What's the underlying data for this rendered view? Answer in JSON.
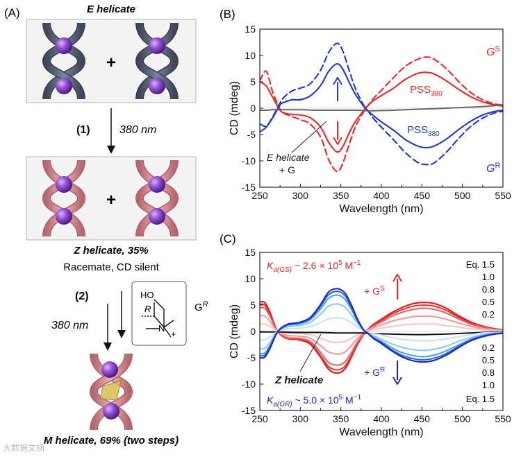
{
  "panel_a": {
    "label": "(A)",
    "e_title": "E helicate",
    "plus1": "+",
    "plus2": "+",
    "step1_num": "(1)",
    "step1_nm": "380 nm",
    "z_title": "Z helicate, 35%",
    "racemate": "Racemate, CD silent",
    "step2_num": "(2)",
    "step2_nm": "380 nm",
    "gr_label": "G",
    "gr_sup": "R",
    "mol_ho": "HO",
    "mol_r": "R",
    "mol_n": "N",
    "mol_plus": "+",
    "m_title": "M helicate, 69% (two steps)",
    "watermark": "大数据文摘",
    "colors": {
      "e_ribbon": "#5b6478",
      "z_ribbon": "#e49aa0",
      "sphere": "#8a4fd0"
    }
  },
  "panel_b": {
    "label": "(B)",
    "anno": {
      "gs": "G",
      "gs_sup": "S",
      "gr": "G",
      "gr_sup": "R",
      "pss_red": "PSS",
      "pss_red_sub": "380",
      "pss_blue": "PSS",
      "pss_blue_sub": "380",
      "e_line1": "E helicate",
      "e_line2": "+ G"
    }
  },
  "panel_c": {
    "label": "(C)",
    "kgs_pre": "K",
    "kgs_sub": "a(GS)",
    "kgs_mid": " ~ 2.6 × 10",
    "kgs_exp": "5",
    "kgs_unit": " M",
    "kgs_unit_sup": "−1",
    "kgr_pre": "K",
    "kgr_sub": "a(GR)",
    "kgr_mid": " ~ 5.0 × 10",
    "kgr_exp": "5",
    "kgr_unit": " M",
    "kgr_unit_sup": "−1",
    "plus_gs": "+ G",
    "plus_gs_sup": "S",
    "plus_gr": "+ G",
    "plus_gr_sup": "R",
    "z_label": "Z helicate",
    "eq_top": [
      "Eq. 1.5",
      "1.0",
      "0.8",
      "0.5",
      "0.2"
    ],
    "eq_bottom": [
      "0.2",
      "0.5",
      "0.8",
      "1.0",
      "Eq. 1.5"
    ]
  },
  "chart_data": [
    {
      "type": "line",
      "panel": "B",
      "xlabel": "Wavelength (nm)",
      "ylabel": "CD (mdeg)",
      "xlim": [
        250,
        550
      ],
      "ylim": [
        -15,
        15
      ],
      "xticks": [
        "250",
        "300",
        "350",
        "400",
        "450",
        "500",
        "550"
      ],
      "yticks": [
        "15",
        "10",
        "5",
        "0",
        "-5",
        "-10",
        "-15"
      ],
      "x": [
        250,
        258,
        266,
        275,
        280,
        290,
        300,
        312,
        325,
        335,
        345,
        352,
        360,
        368,
        378,
        382,
        390,
        400,
        415,
        430,
        445,
        455,
        465,
        480,
        495,
        510,
        525,
        540,
        550
      ],
      "series": [
        {
          "name": "GS solid",
          "color": "#e8292a",
          "dash": false,
          "values": [
            5.0,
            4.2,
            2.0,
            -0.4,
            -0.9,
            -1.2,
            -1.3,
            -1.8,
            -3.6,
            -6.5,
            -8.3,
            -7.4,
            -4.8,
            -2.5,
            -0.5,
            0.3,
            1.4,
            2.4,
            3.8,
            5.5,
            6.6,
            6.8,
            6.5,
            5.2,
            3.6,
            2.2,
            1.2,
            0.6,
            0.4
          ]
        },
        {
          "name": "GS dashed",
          "color": "#e8292a",
          "dash": true,
          "values": [
            5.2,
            7.0,
            3.0,
            -0.2,
            -1.0,
            -1.6,
            -2.2,
            -3.0,
            -5.5,
            -9.8,
            -12.0,
            -10.6,
            -7.0,
            -3.5,
            -0.7,
            0.2,
            1.8,
            3.4,
            5.8,
            8.0,
            9.3,
            9.7,
            9.3,
            7.5,
            5.1,
            3.0,
            1.6,
            0.8,
            0.6
          ]
        },
        {
          "name": "GR solid",
          "color": "#1f39c9",
          "dash": false,
          "values": [
            -4.5,
            -3.6,
            -1.8,
            0.6,
            1.1,
            1.6,
            1.6,
            2.3,
            4.3,
            7.0,
            8.4,
            7.5,
            5.0,
            2.6,
            0.4,
            -0.3,
            -1.4,
            -2.6,
            -4.2,
            -6.0,
            -7.2,
            -7.5,
            -7.2,
            -5.9,
            -4.1,
            -2.5,
            -1.3,
            -0.6,
            -0.4
          ]
        },
        {
          "name": "GR dashed",
          "color": "#1f39c9",
          "dash": true,
          "values": [
            -3.0,
            -3.4,
            -1.6,
            1.0,
            2.1,
            3.3,
            3.8,
            4.6,
            7.2,
            10.6,
            12.3,
            11.0,
            7.3,
            3.7,
            0.6,
            -0.2,
            -1.9,
            -3.6,
            -6.0,
            -8.5,
            -10.3,
            -10.7,
            -10.4,
            -8.4,
            -5.8,
            -3.5,
            -1.9,
            -0.9,
            -0.6
          ]
        },
        {
          "name": "E helicate + G",
          "color": "#666666",
          "dash": false,
          "values": [
            -0.4,
            -0.4,
            -0.3,
            -0.3,
            -0.3,
            -0.3,
            -0.3,
            -0.35,
            -0.4,
            -0.4,
            -0.4,
            -0.4,
            -0.4,
            -0.4,
            -0.45,
            -0.5,
            -0.5,
            -0.45,
            -0.4,
            -0.3,
            -0.2,
            -0.15,
            -0.1,
            0.0,
            0.1,
            0.2,
            0.3,
            0.5,
            0.6
          ]
        }
      ]
    },
    {
      "type": "line",
      "panel": "C",
      "xlabel": "Wavelength (nm)",
      "ylabel": "CD (mdeg)",
      "xlim": [
        250,
        550
      ],
      "ylim": [
        -15,
        15
      ],
      "xticks": [
        "250",
        "300",
        "350",
        "400",
        "450",
        "500",
        "550"
      ],
      "yticks": [
        "15",
        "10",
        "5",
        "0",
        "-5",
        "-10",
        "-15"
      ],
      "x": [
        250,
        256,
        262,
        270,
        276,
        285,
        298,
        312,
        325,
        335,
        346,
        355,
        363,
        370,
        378,
        382,
        390,
        400,
        412,
        425,
        440,
        452,
        465,
        480,
        495,
        510,
        525,
        540,
        550
      ],
      "series": [
        {
          "name": "GS eq 1.5",
          "color": "#d81a1a",
          "dash": false,
          "values": [
            5.6,
            5.5,
            3.8,
            0.6,
            -0.7,
            -1.4,
            -1.6,
            -2.4,
            -4.9,
            -7.2,
            -7.9,
            -7.1,
            -4.9,
            -2.6,
            -0.6,
            0.2,
            1.3,
            2.3,
            3.5,
            4.5,
            5.3,
            5.5,
            5.3,
            4.4,
            3.0,
            1.8,
            1.0,
            0.5,
            0.3
          ]
        },
        {
          "name": "GS eq 1.0",
          "color": "#e23434",
          "dash": false,
          "values": [
            5.2,
            5.0,
            3.4,
            0.5,
            -0.7,
            -1.4,
            -1.5,
            -2.2,
            -4.6,
            -6.7,
            -7.3,
            -6.6,
            -4.6,
            -2.4,
            -0.5,
            0.2,
            1.2,
            2.1,
            3.2,
            4.1,
            4.8,
            5.0,
            4.8,
            4.0,
            2.7,
            1.6,
            0.9,
            0.4,
            0.3
          ]
        },
        {
          "name": "GS eq 0.8",
          "color": "#ec6060",
          "dash": false,
          "values": [
            4.5,
            4.4,
            3.0,
            0.5,
            -0.6,
            -1.2,
            -1.3,
            -1.9,
            -4.0,
            -5.9,
            -6.4,
            -5.8,
            -4.0,
            -2.1,
            -0.5,
            0.2,
            1.0,
            1.8,
            2.8,
            3.6,
            4.2,
            4.4,
            4.2,
            3.5,
            2.4,
            1.4,
            0.8,
            0.4,
            0.2
          ]
        },
        {
          "name": "GS eq 0.5",
          "color": "#f19a9a",
          "dash": false,
          "values": [
            3.0,
            2.9,
            2.0,
            0.3,
            -0.4,
            -0.8,
            -0.9,
            -1.3,
            -2.7,
            -3.9,
            -4.3,
            -3.9,
            -2.7,
            -1.4,
            -0.3,
            0.1,
            0.7,
            1.2,
            1.9,
            2.4,
            2.8,
            2.9,
            2.8,
            2.3,
            1.6,
            1.0,
            0.5,
            0.3,
            0.2
          ]
        },
        {
          "name": "GS eq 0.2",
          "color": "#f6c6c6",
          "dash": false,
          "values": [
            1.4,
            1.4,
            1.0,
            0.2,
            -0.2,
            -0.4,
            -0.4,
            -0.6,
            -1.3,
            -1.9,
            -2.1,
            -1.9,
            -1.3,
            -0.7,
            -0.1,
            0.1,
            0.3,
            0.6,
            0.9,
            1.2,
            1.4,
            1.4,
            1.4,
            1.1,
            0.8,
            0.5,
            0.3,
            0.1,
            0.1
          ]
        },
        {
          "name": "Z helicate",
          "color": "#111111",
          "dash": false,
          "values": [
            -0.1,
            -0.1,
            -0.1,
            -0.1,
            -0.1,
            -0.15,
            -0.2,
            -0.2,
            -0.2,
            -0.25,
            -0.3,
            -0.3,
            -0.3,
            -0.3,
            -0.3,
            -0.35,
            -0.4,
            -0.45,
            -0.5,
            -0.55,
            -0.6,
            -0.6,
            -0.55,
            -0.5,
            -0.4,
            -0.3,
            -0.2,
            -0.1,
            0.0
          ]
        },
        {
          "name": "GR eq 0.2",
          "color": "#c6e2f6",
          "dash": false,
          "values": [
            -1.7,
            -1.6,
            -1.1,
            -0.2,
            0.2,
            0.5,
            0.6,
            0.9,
            1.7,
            2.4,
            2.6,
            2.3,
            1.6,
            0.8,
            0.1,
            -0.1,
            -0.4,
            -0.7,
            -1.1,
            -1.5,
            -1.7,
            -1.8,
            -1.7,
            -1.4,
            -1.0,
            -0.6,
            -0.3,
            -0.2,
            -0.1
          ]
        },
        {
          "name": "GR eq 0.5",
          "color": "#8cc8ee",
          "dash": false,
          "values": [
            -3.3,
            -3.2,
            -2.2,
            -0.4,
            0.4,
            0.9,
            1.1,
            1.7,
            3.3,
            4.8,
            5.2,
            4.6,
            3.2,
            1.6,
            0.2,
            -0.1,
            -0.8,
            -1.5,
            -2.3,
            -3.0,
            -3.5,
            -3.6,
            -3.4,
            -2.8,
            -1.9,
            -1.2,
            -0.6,
            -0.3,
            -0.2
          ]
        },
        {
          "name": "GR eq 0.8",
          "color": "#49a3e4",
          "dash": false,
          "values": [
            -4.2,
            -4.1,
            -2.8,
            -0.5,
            0.5,
            1.2,
            1.4,
            2.2,
            4.3,
            6.3,
            6.9,
            6.1,
            4.2,
            2.1,
            0.3,
            -0.2,
            -1.1,
            -1.9,
            -3.0,
            -4.0,
            -4.6,
            -4.8,
            -4.5,
            -3.7,
            -2.6,
            -1.5,
            -0.8,
            -0.4,
            -0.3
          ]
        },
        {
          "name": "GR eq 1.0",
          "color": "#2c66d4",
          "dash": false,
          "values": [
            -4.6,
            -4.5,
            -3.1,
            -0.5,
            0.6,
            1.3,
            1.6,
            2.4,
            4.8,
            7.0,
            7.6,
            6.8,
            4.6,
            2.3,
            0.3,
            -0.2,
            -1.2,
            -2.1,
            -3.4,
            -4.5,
            -5.2,
            -5.4,
            -5.1,
            -4.2,
            -2.9,
            -1.7,
            -0.9,
            -0.5,
            -0.3
          ]
        },
        {
          "name": "GR eq 1.5",
          "color": "#1f25c4",
          "dash": false,
          "values": [
            -5.0,
            -4.9,
            -3.4,
            -0.6,
            0.6,
            1.4,
            1.7,
            2.6,
            5.1,
            7.5,
            8.1,
            7.3,
            5.0,
            2.5,
            0.3,
            -0.2,
            -1.3,
            -2.3,
            -3.6,
            -4.8,
            -5.6,
            -5.8,
            -5.5,
            -4.5,
            -3.1,
            -1.8,
            -1.0,
            -0.5,
            -0.4
          ]
        }
      ]
    }
  ]
}
